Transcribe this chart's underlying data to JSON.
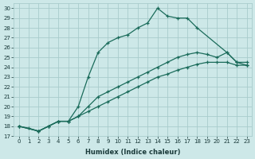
{
  "xlabel": "Humidex (Indice chaleur)",
  "ylabel": "",
  "xlim": [
    -0.5,
    23.5
  ],
  "ylim": [
    17,
    30.5
  ],
  "background_color": "#cde8e8",
  "grid_color": "#a8cccc",
  "line_color": "#1a6b5a",
  "series": [
    {
      "x": [
        0,
        1,
        2,
        3,
        4,
        5,
        6,
        7,
        8,
        9,
        10,
        11,
        12,
        13,
        14,
        15,
        16,
        17,
        18,
        21,
        22,
        23
      ],
      "y": [
        18.0,
        17.8,
        17.5,
        18.0,
        18.5,
        18.5,
        20.0,
        23.0,
        25.5,
        26.5,
        27.0,
        27.3,
        28.0,
        28.5,
        30.0,
        29.2,
        29.0,
        29.0,
        28.0,
        25.5,
        24.5,
        24.2
      ]
    },
    {
      "x": [
        0,
        2,
        3,
        4,
        5,
        6,
        7,
        8,
        9,
        10,
        11,
        12,
        13,
        14,
        15,
        16,
        17,
        18,
        19,
        20,
        21,
        22,
        23
      ],
      "y": [
        18.0,
        17.5,
        18.0,
        18.5,
        18.5,
        19.0,
        20.0,
        21.0,
        21.5,
        22.0,
        22.5,
        23.0,
        23.5,
        24.0,
        24.5,
        25.0,
        25.3,
        25.5,
        25.3,
        25.0,
        25.5,
        24.5,
        24.5
      ]
    },
    {
      "x": [
        0,
        2,
        3,
        4,
        5,
        6,
        7,
        8,
        9,
        10,
        11,
        12,
        13,
        14,
        15,
        16,
        17,
        18,
        19,
        20,
        21,
        22,
        23
      ],
      "y": [
        18.0,
        17.5,
        18.0,
        18.5,
        18.5,
        19.0,
        19.5,
        20.0,
        20.5,
        21.0,
        21.5,
        22.0,
        22.5,
        23.0,
        23.3,
        23.7,
        24.0,
        24.3,
        24.5,
        24.5,
        24.5,
        24.2,
        24.2
      ]
    }
  ],
  "yticks": [
    17,
    18,
    19,
    20,
    21,
    22,
    23,
    24,
    25,
    26,
    27,
    28,
    29,
    30
  ],
  "xticks": [
    0,
    1,
    2,
    3,
    4,
    5,
    6,
    7,
    8,
    9,
    10,
    11,
    12,
    13,
    14,
    15,
    16,
    17,
    18,
    19,
    20,
    21,
    22,
    23
  ]
}
